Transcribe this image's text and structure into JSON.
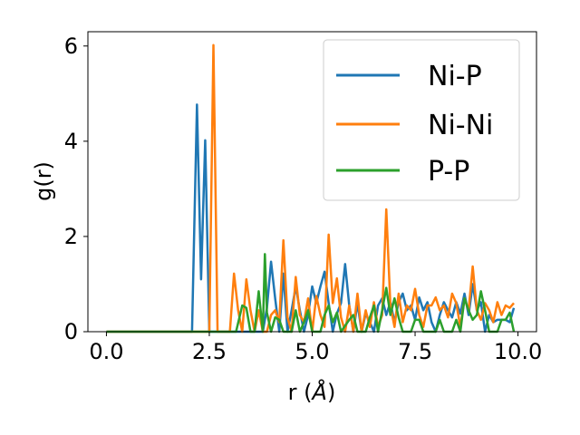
{
  "chart_data": {
    "type": "line",
    "xlabel_main": "r (",
    "xlabel_unit": "Å",
    "xlabel_close": ")",
    "ylabel": "g(r)",
    "xlim": [
      -0.45,
      10.45
    ],
    "ylim": [
      0,
      6.3
    ],
    "x_ticks": [
      0.0,
      2.5,
      5.0,
      7.5,
      10.0
    ],
    "x_tick_labels": [
      "0.0",
      "2.5",
      "5.0",
      "7.5",
      "10.0"
    ],
    "y_ticks": [
      0,
      2,
      4,
      6
    ],
    "y_tick_labels": [
      "0",
      "2",
      "4",
      "6"
    ],
    "grid": false,
    "legend_position": "top-right",
    "series": [
      {
        "name": "Ni-P",
        "color": "#1f77b4",
        "points": [
          [
            0,
            0
          ],
          [
            2.08,
            0
          ],
          [
            2.2,
            4.77
          ],
          [
            2.3,
            1.1
          ],
          [
            2.4,
            4.02
          ],
          [
            2.5,
            0
          ],
          [
            3.8,
            0
          ],
          [
            3.9,
            0.5
          ],
          [
            4.0,
            1.47
          ],
          [
            4.1,
            0.7
          ],
          [
            4.2,
            0
          ],
          [
            4.3,
            1.22
          ],
          [
            4.4,
            0
          ],
          [
            4.5,
            0.45
          ],
          [
            4.6,
            0.95
          ],
          [
            4.7,
            0.45
          ],
          [
            4.8,
            0
          ],
          [
            4.9,
            0.35
          ],
          [
            5.0,
            0.95
          ],
          [
            5.1,
            0.6
          ],
          [
            5.2,
            0.95
          ],
          [
            5.3,
            1.26
          ],
          [
            5.4,
            0.6
          ],
          [
            5.5,
            0
          ],
          [
            5.6,
            0.38
          ],
          [
            5.7,
            0.6
          ],
          [
            5.8,
            1.42
          ],
          [
            5.9,
            0.55
          ],
          [
            6.0,
            0
          ],
          [
            6.1,
            0.6
          ],
          [
            6.2,
            0
          ],
          [
            6.3,
            0.38
          ],
          [
            6.4,
            0.2
          ],
          [
            6.5,
            0
          ],
          [
            6.6,
            0.55
          ],
          [
            6.7,
            0.7
          ],
          [
            6.8,
            0.35
          ],
          [
            6.9,
            0.62
          ],
          [
            7.0,
            0.2
          ],
          [
            7.1,
            0.62
          ],
          [
            7.2,
            0.8
          ],
          [
            7.3,
            0.45
          ],
          [
            7.4,
            0.55
          ],
          [
            7.5,
            0.25
          ],
          [
            7.6,
            0.72
          ],
          [
            7.7,
            0.45
          ],
          [
            7.8,
            0.62
          ],
          [
            7.9,
            0.2
          ],
          [
            8.0,
            0
          ],
          [
            8.1,
            0.35
          ],
          [
            8.2,
            0.62
          ],
          [
            8.3,
            0.45
          ],
          [
            8.4,
            0.3
          ],
          [
            8.5,
            0.62
          ],
          [
            8.6,
            0.38
          ],
          [
            8.7,
            0.8
          ],
          [
            8.8,
            0.35
          ],
          [
            8.9,
            1.0
          ],
          [
            9.0,
            0.45
          ],
          [
            9.1,
            0.62
          ],
          [
            9.2,
            0
          ],
          [
            9.3,
            0.35
          ],
          [
            9.4,
            0.2
          ],
          [
            9.5,
            0.25
          ],
          [
            9.6,
            0.25
          ],
          [
            9.7,
            0.25
          ],
          [
            9.8,
            0.2
          ],
          [
            9.9,
            0.5
          ]
        ]
      },
      {
        "name": "Ni-Ni",
        "color": "#ff7f0e",
        "points": [
          [
            0,
            0
          ],
          [
            2.5,
            0
          ],
          [
            2.6,
            6.02
          ],
          [
            2.7,
            0
          ],
          [
            3.0,
            0
          ],
          [
            3.1,
            1.22
          ],
          [
            3.2,
            0.45
          ],
          [
            3.3,
            0
          ],
          [
            3.4,
            1.1
          ],
          [
            3.5,
            0.45
          ],
          [
            3.6,
            0
          ],
          [
            3.7,
            0.45
          ],
          [
            3.8,
            0
          ],
          [
            3.9,
            0
          ],
          [
            4.0,
            0.35
          ],
          [
            4.1,
            0.45
          ],
          [
            4.2,
            0.2
          ],
          [
            4.3,
            1.92
          ],
          [
            4.4,
            0.3
          ],
          [
            4.5,
            0
          ],
          [
            4.6,
            1.15
          ],
          [
            4.7,
            0.35
          ],
          [
            4.8,
            0.2
          ],
          [
            4.9,
            0.7
          ],
          [
            5.0,
            0
          ],
          [
            5.1,
            0.75
          ],
          [
            5.2,
            0.35
          ],
          [
            5.3,
            0.1
          ],
          [
            5.4,
            2.04
          ],
          [
            5.5,
            0.6
          ],
          [
            5.6,
            1.12
          ],
          [
            5.7,
            0.3
          ],
          [
            5.8,
            0
          ],
          [
            5.9,
            0.55
          ],
          [
            6.0,
            0
          ],
          [
            6.1,
            0.8
          ],
          [
            6.2,
            0
          ],
          [
            6.3,
            0.45
          ],
          [
            6.4,
            0.1
          ],
          [
            6.5,
            0.62
          ],
          [
            6.6,
            0.1
          ],
          [
            6.7,
            0.35
          ],
          [
            6.8,
            2.57
          ],
          [
            6.9,
            0.55
          ],
          [
            7.0,
            0.1
          ],
          [
            7.1,
            0.8
          ],
          [
            7.2,
            0.2
          ],
          [
            7.3,
            0.55
          ],
          [
            7.4,
            0.45
          ],
          [
            7.5,
            0.9
          ],
          [
            7.6,
            0.35
          ],
          [
            7.7,
            0.1
          ],
          [
            7.8,
            0.55
          ],
          [
            7.9,
            0.55
          ],
          [
            8.0,
            0.72
          ],
          [
            8.1,
            0.45
          ],
          [
            8.2,
            0.55
          ],
          [
            8.3,
            0.3
          ],
          [
            8.4,
            0.8
          ],
          [
            8.5,
            0.6
          ],
          [
            8.6,
            0.1
          ],
          [
            8.7,
            0.7
          ],
          [
            8.8,
            0.45
          ],
          [
            8.9,
            1.37
          ],
          [
            9.0,
            0.45
          ],
          [
            9.1,
            0.25
          ],
          [
            9.2,
            0.6
          ],
          [
            9.3,
            0.45
          ],
          [
            9.4,
            0.2
          ],
          [
            9.5,
            0.62
          ],
          [
            9.6,
            0.35
          ],
          [
            9.7,
            0.55
          ],
          [
            9.8,
            0.5
          ],
          [
            9.9,
            0.6
          ]
        ]
      },
      {
        "name": "P-P",
        "color": "#2ca02c",
        "points": [
          [
            0,
            0
          ],
          [
            3.15,
            0
          ],
          [
            3.3,
            0.55
          ],
          [
            3.4,
            0.5
          ],
          [
            3.5,
            0
          ],
          [
            3.6,
            0
          ],
          [
            3.7,
            0.85
          ],
          [
            3.8,
            0
          ],
          [
            3.85,
            1.63
          ],
          [
            3.9,
            0.4
          ],
          [
            4.0,
            0
          ],
          [
            4.1,
            0.3
          ],
          [
            4.2,
            0.25
          ],
          [
            4.3,
            0
          ],
          [
            4.5,
            0
          ],
          [
            4.6,
            0.45
          ],
          [
            4.7,
            0
          ],
          [
            4.8,
            0.2
          ],
          [
            4.9,
            0.45
          ],
          [
            5.0,
            0
          ],
          [
            5.2,
            0
          ],
          [
            5.3,
            0.35
          ],
          [
            5.4,
            0.55
          ],
          [
            5.5,
            0.2
          ],
          [
            5.6,
            0.4
          ],
          [
            5.7,
            0
          ],
          [
            5.9,
            0.25
          ],
          [
            6.0,
            0.35
          ],
          [
            6.1,
            0
          ],
          [
            6.3,
            0
          ],
          [
            6.4,
            0.3
          ],
          [
            6.5,
            0.55
          ],
          [
            6.6,
            0
          ],
          [
            6.7,
            0.45
          ],
          [
            6.8,
            0.92
          ],
          [
            6.9,
            0.35
          ],
          [
            7.0,
            0.7
          ],
          [
            7.1,
            0.3
          ],
          [
            7.2,
            0
          ],
          [
            7.4,
            0
          ],
          [
            7.5,
            0.25
          ],
          [
            7.6,
            0.25
          ],
          [
            7.7,
            0
          ],
          [
            8.0,
            0
          ],
          [
            8.1,
            0.25
          ],
          [
            8.2,
            0
          ],
          [
            8.4,
            0
          ],
          [
            8.5,
            0.25
          ],
          [
            8.6,
            0
          ],
          [
            8.7,
            0.7
          ],
          [
            8.8,
            0.45
          ],
          [
            8.9,
            0.25
          ],
          [
            9.0,
            0.35
          ],
          [
            9.1,
            0.85
          ],
          [
            9.2,
            0.45
          ],
          [
            9.3,
            0
          ],
          [
            9.5,
            0
          ],
          [
            9.6,
            0.25
          ],
          [
            9.7,
            0.25
          ],
          [
            9.8,
            0.4
          ],
          [
            9.9,
            0
          ]
        ]
      }
    ]
  }
}
